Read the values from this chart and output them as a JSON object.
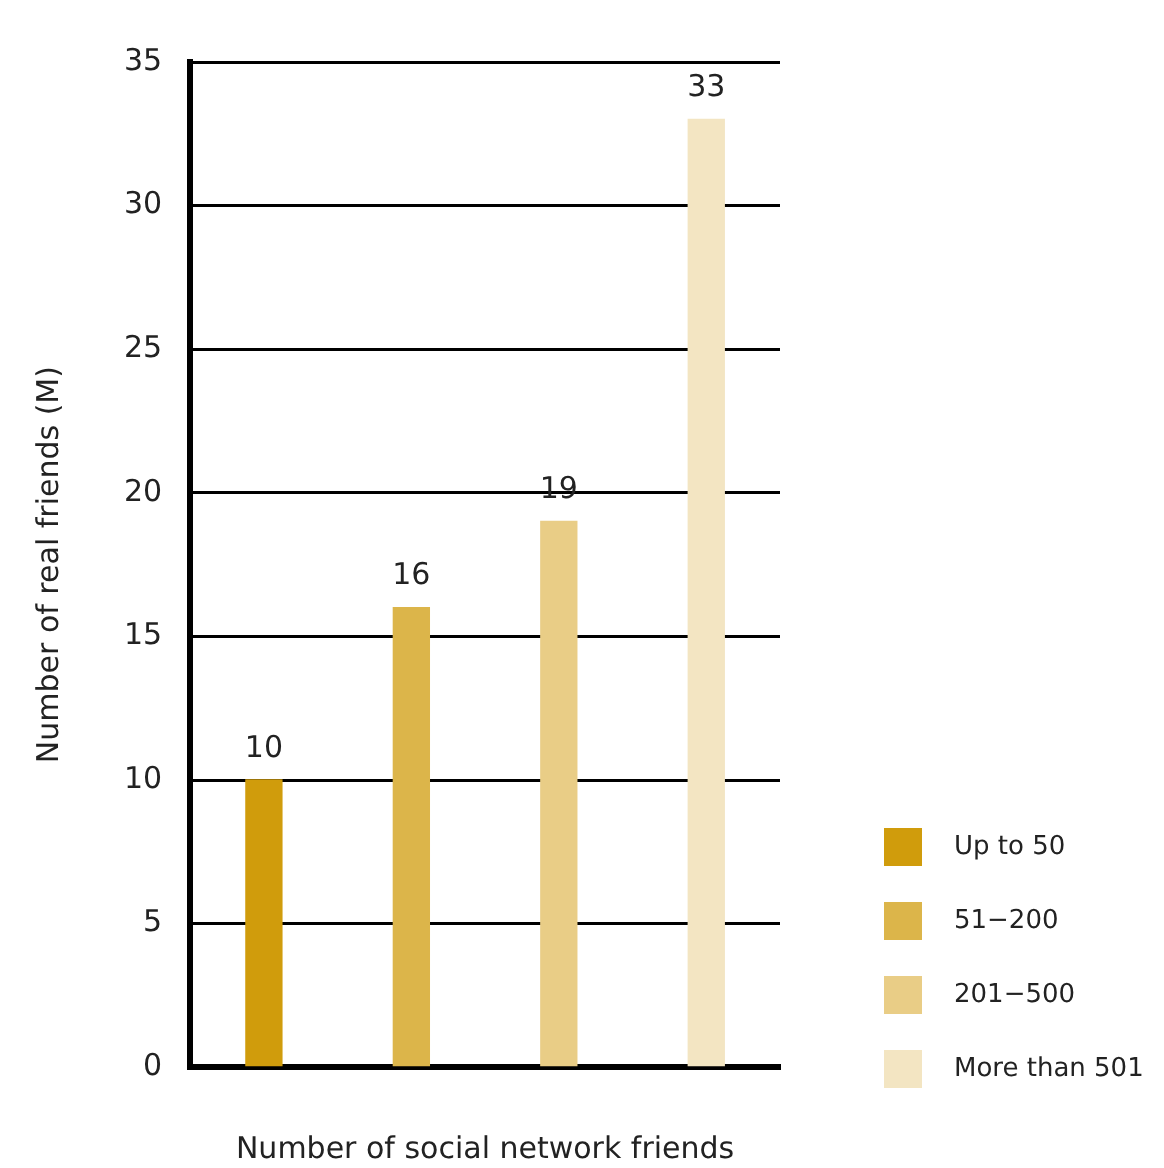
{
  "chart_data": {
    "type": "bar",
    "xlabel": "Number of social network friends",
    "ylabel": "Number of real friends (M)",
    "categories": [
      null,
      null,
      null,
      null
    ],
    "series": [
      {
        "name": "Up to 50",
        "color": "#d09c0c",
        "values": [
          10,
          null,
          null,
          null
        ]
      },
      {
        "name": "51−200",
        "color": "#dcb54a",
        "values": [
          null,
          16,
          null,
          null
        ]
      },
      {
        "name": "201−500",
        "color": "#e9cd86",
        "values": [
          null,
          null,
          19,
          null
        ]
      },
      {
        "name": "More than 501",
        "color": "#f3e5c2",
        "values": [
          null,
          null,
          null,
          33
        ]
      }
    ],
    "ylim": [
      0,
      35
    ],
    "yticks": [
      0,
      5,
      10,
      15,
      20,
      25,
      30,
      35
    ],
    "grid": "y",
    "legend": "bottom right",
    "data_labels": true
  }
}
